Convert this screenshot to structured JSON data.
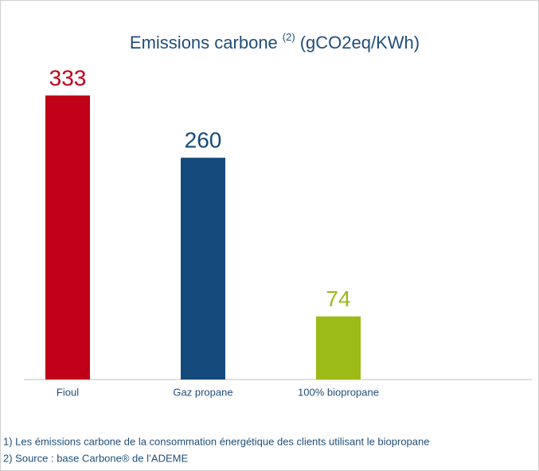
{
  "chart_data": {
    "type": "bar",
    "title": "Emissions carbone",
    "title_superscript": "(2)",
    "title_unit": "(gCO2eq/KWh)",
    "categories": [
      "Fioul",
      "Gaz propane",
      "100% biopropane"
    ],
    "values": [
      333,
      260,
      74
    ],
    "colors": [
      "#c00018",
      "#154a7c",
      "#9cbb17"
    ],
    "footnotes": [
      "1) Les émissions carbone de la consommation énergétique des clients utilisant le biopropane",
      "2) Source : base Carbone® de l’ADEME"
    ]
  }
}
